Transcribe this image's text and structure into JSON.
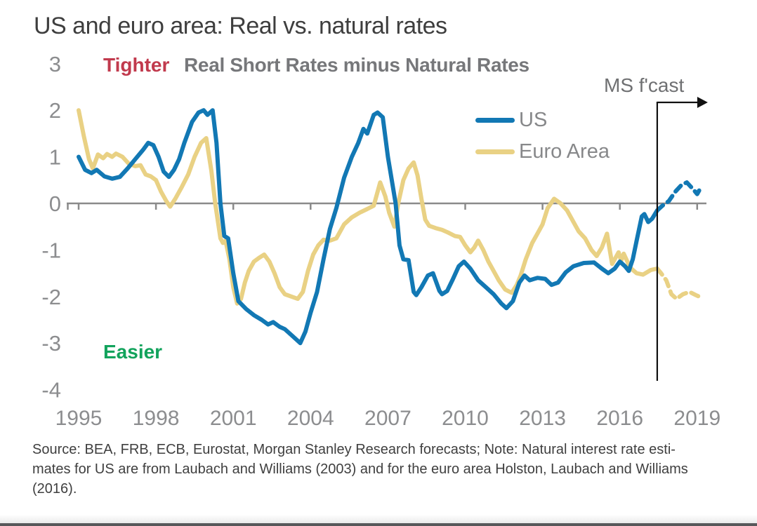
{
  "title": "US and euro area: Real vs. natural rates",
  "annotations": {
    "tighter": "Tighter",
    "easier": "Easier",
    "subtitle": "Real Short Rates minus Natural Rates",
    "forecast_label": "MS f'cast"
  },
  "legend": {
    "us": "US",
    "euro": "Euro Area"
  },
  "colors": {
    "us": "#1278b4",
    "euro": "#e9d184",
    "axis": "#8a8a8a",
    "tick_text": "#8c8d8f",
    "tighter": "#c13a4d",
    "easier": "#12a35c",
    "forecast_line": "#111111"
  },
  "source_note": {
    "lines": [
      "Source: BEA, FRB, ECB, Eurostat, Morgan Stanley Research forecasts; Note: Natural interest rate esti-",
      "mates for US are from Laubach and Williams (2003) and for the euro area Holston, Laubach and Williams",
      "(2016)."
    ]
  },
  "chart_data": {
    "type": "line",
    "title": "Real Short Rates minus Natural Rates",
    "xlabel": "",
    "ylabel": "",
    "x_ticks": [
      1995,
      1998,
      2001,
      2004,
      2007,
      2010,
      2013,
      2016,
      2019
    ],
    "y_ticks": [
      3,
      2,
      1,
      0,
      -1,
      -2,
      -3,
      -4
    ],
    "xlim": [
      1994.5,
      2019.5
    ],
    "ylim": [
      -4,
      3
    ],
    "grid": false,
    "legend_position": "upper-right-inside",
    "forecast_start": 2017.45,
    "series": [
      {
        "name": "Euro Area",
        "style": "solid",
        "color_key": "euro",
        "points": [
          [
            1995.0,
            2.0
          ],
          [
            1995.2,
            1.45
          ],
          [
            1995.4,
            0.95
          ],
          [
            1995.55,
            0.75
          ],
          [
            1995.75,
            1.05
          ],
          [
            1995.95,
            0.97
          ],
          [
            1996.1,
            1.06
          ],
          [
            1996.3,
            1.0
          ],
          [
            1996.45,
            1.07
          ],
          [
            1996.7,
            1.0
          ],
          [
            1996.95,
            0.85
          ],
          [
            1997.2,
            0.8
          ],
          [
            1997.4,
            0.82
          ],
          [
            1997.6,
            0.62
          ],
          [
            1997.8,
            0.58
          ],
          [
            1998.0,
            0.5
          ],
          [
            1998.2,
            0.25
          ],
          [
            1998.4,
            0.05
          ],
          [
            1998.55,
            -0.07
          ],
          [
            1998.75,
            0.1
          ],
          [
            1999.0,
            0.35
          ],
          [
            1999.25,
            0.62
          ],
          [
            1999.5,
            1.0
          ],
          [
            1999.75,
            1.3
          ],
          [
            1999.95,
            1.4
          ],
          [
            2000.15,
            0.7
          ],
          [
            2000.3,
            0.0
          ],
          [
            2000.5,
            -0.75
          ],
          [
            2000.6,
            -0.85
          ],
          [
            2000.7,
            -0.8
          ],
          [
            2000.85,
            -1.2
          ],
          [
            2001.0,
            -1.8
          ],
          [
            2001.15,
            -2.15
          ],
          [
            2001.3,
            -2.05
          ],
          [
            2001.45,
            -1.7
          ],
          [
            2001.6,
            -1.45
          ],
          [
            2001.8,
            -1.25
          ],
          [
            2002.0,
            -1.17
          ],
          [
            2002.2,
            -1.1
          ],
          [
            2002.4,
            -1.25
          ],
          [
            2002.6,
            -1.5
          ],
          [
            2002.8,
            -1.8
          ],
          [
            2003.0,
            -1.95
          ],
          [
            2003.25,
            -2.0
          ],
          [
            2003.5,
            -2.05
          ],
          [
            2003.7,
            -1.9
          ],
          [
            2003.9,
            -1.45
          ],
          [
            2004.1,
            -1.1
          ],
          [
            2004.3,
            -0.9
          ],
          [
            2004.5,
            -0.78
          ],
          [
            2004.75,
            -0.8
          ],
          [
            2005.0,
            -0.75
          ],
          [
            2005.3,
            -0.45
          ],
          [
            2005.6,
            -0.3
          ],
          [
            2005.9,
            -0.2
          ],
          [
            2006.2,
            -0.12
          ],
          [
            2006.45,
            -0.05
          ],
          [
            2006.7,
            0.45
          ],
          [
            2006.9,
            0.15
          ],
          [
            2007.05,
            -0.2
          ],
          [
            2007.25,
            -0.5
          ],
          [
            2007.4,
            0.0
          ],
          [
            2007.6,
            0.5
          ],
          [
            2007.8,
            0.75
          ],
          [
            2008.0,
            0.88
          ],
          [
            2008.15,
            0.6
          ],
          [
            2008.3,
            0.1
          ],
          [
            2008.45,
            -0.35
          ],
          [
            2008.6,
            -0.48
          ],
          [
            2008.85,
            -0.53
          ],
          [
            2009.1,
            -0.57
          ],
          [
            2009.35,
            -0.63
          ],
          [
            2009.6,
            -0.7
          ],
          [
            2009.8,
            -0.72
          ],
          [
            2010.0,
            -0.9
          ],
          [
            2010.2,
            -1.05
          ],
          [
            2010.35,
            -0.95
          ],
          [
            2010.5,
            -0.8
          ],
          [
            2010.7,
            -1.0
          ],
          [
            2010.9,
            -1.25
          ],
          [
            2011.1,
            -1.45
          ],
          [
            2011.3,
            -1.65
          ],
          [
            2011.55,
            -1.85
          ],
          [
            2011.8,
            -1.92
          ],
          [
            2012.0,
            -1.75
          ],
          [
            2012.15,
            -1.55
          ],
          [
            2012.35,
            -1.2
          ],
          [
            2012.6,
            -0.85
          ],
          [
            2012.8,
            -0.65
          ],
          [
            2013.0,
            -0.45
          ],
          [
            2013.2,
            -0.1
          ],
          [
            2013.45,
            0.1
          ],
          [
            2013.7,
            0.0
          ],
          [
            2013.95,
            -0.15
          ],
          [
            2014.15,
            -0.35
          ],
          [
            2014.4,
            -0.6
          ],
          [
            2014.65,
            -0.75
          ],
          [
            2014.9,
            -1.0
          ],
          [
            2015.1,
            -1.13
          ],
          [
            2015.3,
            -0.95
          ],
          [
            2015.5,
            -0.65
          ],
          [
            2015.7,
            -1.3
          ],
          [
            2015.95,
            -1.05
          ],
          [
            2016.05,
            -1.23
          ],
          [
            2016.15,
            -1.08
          ],
          [
            2016.4,
            -1.38
          ],
          [
            2016.65,
            -1.5
          ],
          [
            2016.9,
            -1.53
          ],
          [
            2017.2,
            -1.43
          ],
          [
            2017.45,
            -1.4
          ]
        ]
      },
      {
        "name": "Euro Area forecast",
        "style": "dashed",
        "color_key": "euro",
        "points": [
          [
            2017.45,
            -1.4
          ],
          [
            2017.6,
            -1.5
          ],
          [
            2017.8,
            -1.65
          ],
          [
            2018.0,
            -1.95
          ],
          [
            2018.2,
            -2.05
          ],
          [
            2018.45,
            -1.95
          ],
          [
            2018.7,
            -1.9
          ],
          [
            2018.95,
            -1.97
          ],
          [
            2019.15,
            -2.02
          ]
        ]
      },
      {
        "name": "US",
        "style": "solid",
        "color_key": "us",
        "points": [
          [
            1995.0,
            1.0
          ],
          [
            1995.25,
            0.72
          ],
          [
            1995.5,
            0.65
          ],
          [
            1995.7,
            0.72
          ],
          [
            1996.0,
            0.58
          ],
          [
            1996.3,
            0.53
          ],
          [
            1996.6,
            0.57
          ],
          [
            1996.9,
            0.75
          ],
          [
            1997.2,
            0.95
          ],
          [
            1997.5,
            1.15
          ],
          [
            1997.7,
            1.3
          ],
          [
            1997.9,
            1.25
          ],
          [
            1998.1,
            1.0
          ],
          [
            1998.3,
            0.68
          ],
          [
            1998.5,
            0.57
          ],
          [
            1998.7,
            0.72
          ],
          [
            1998.9,
            0.95
          ],
          [
            1999.1,
            1.3
          ],
          [
            1999.4,
            1.75
          ],
          [
            1999.65,
            1.95
          ],
          [
            1999.85,
            2.0
          ],
          [
            2000.0,
            1.9
          ],
          [
            2000.2,
            2.0
          ],
          [
            2000.35,
            1.3
          ],
          [
            2000.5,
            0.0
          ],
          [
            2000.65,
            -0.7
          ],
          [
            2000.8,
            -0.75
          ],
          [
            2001.0,
            -1.5
          ],
          [
            2001.2,
            -2.1
          ],
          [
            2001.5,
            -2.27
          ],
          [
            2001.8,
            -2.4
          ],
          [
            2002.1,
            -2.5
          ],
          [
            2002.35,
            -2.6
          ],
          [
            2002.55,
            -2.55
          ],
          [
            2002.8,
            -2.65
          ],
          [
            2003.0,
            -2.7
          ],
          [
            2003.3,
            -2.85
          ],
          [
            2003.6,
            -3.0
          ],
          [
            2003.8,
            -2.75
          ],
          [
            2004.0,
            -2.35
          ],
          [
            2004.25,
            -1.9
          ],
          [
            2004.5,
            -1.2
          ],
          [
            2004.75,
            -0.55
          ],
          [
            2005.0,
            -0.1
          ],
          [
            2005.3,
            0.55
          ],
          [
            2005.6,
            1.0
          ],
          [
            2005.85,
            1.3
          ],
          [
            2006.05,
            1.6
          ],
          [
            2006.2,
            1.5
          ],
          [
            2006.45,
            1.9
          ],
          [
            2006.6,
            1.95
          ],
          [
            2006.8,
            1.85
          ],
          [
            2007.0,
            1.0
          ],
          [
            2007.3,
            0.0
          ],
          [
            2007.45,
            -0.9
          ],
          [
            2007.6,
            -1.2
          ],
          [
            2007.8,
            -1.22
          ],
          [
            2008.0,
            -1.9
          ],
          [
            2008.1,
            -1.97
          ],
          [
            2008.3,
            -1.8
          ],
          [
            2008.55,
            -1.55
          ],
          [
            2008.75,
            -1.5
          ],
          [
            2009.0,
            -1.88
          ],
          [
            2009.1,
            -1.95
          ],
          [
            2009.3,
            -1.88
          ],
          [
            2009.5,
            -1.65
          ],
          [
            2009.75,
            -1.35
          ],
          [
            2009.95,
            -1.25
          ],
          [
            2010.2,
            -1.4
          ],
          [
            2010.5,
            -1.65
          ],
          [
            2010.8,
            -1.8
          ],
          [
            2011.1,
            -1.95
          ],
          [
            2011.4,
            -2.15
          ],
          [
            2011.6,
            -2.25
          ],
          [
            2011.85,
            -2.1
          ],
          [
            2012.1,
            -1.7
          ],
          [
            2012.3,
            -1.55
          ],
          [
            2012.5,
            -1.65
          ],
          [
            2012.8,
            -1.6
          ],
          [
            2013.1,
            -1.62
          ],
          [
            2013.35,
            -1.75
          ],
          [
            2013.6,
            -1.7
          ],
          [
            2013.9,
            -1.48
          ],
          [
            2014.2,
            -1.35
          ],
          [
            2014.6,
            -1.28
          ],
          [
            2015.0,
            -1.27
          ],
          [
            2015.3,
            -1.4
          ],
          [
            2015.55,
            -1.5
          ],
          [
            2015.8,
            -1.4
          ],
          [
            2016.0,
            -1.25
          ],
          [
            2016.2,
            -1.35
          ],
          [
            2016.35,
            -1.45
          ],
          [
            2016.5,
            -1.2
          ],
          [
            2016.65,
            -0.8
          ],
          [
            2016.85,
            -0.28
          ],
          [
            2016.95,
            -0.23
          ],
          [
            2017.1,
            -0.4
          ],
          [
            2017.25,
            -0.33
          ],
          [
            2017.45,
            -0.15
          ]
        ]
      },
      {
        "name": "US forecast",
        "style": "dashed",
        "color_key": "us",
        "points": [
          [
            2017.45,
            -0.15
          ],
          [
            2017.65,
            -0.05
          ],
          [
            2017.9,
            0.05
          ],
          [
            2018.15,
            0.25
          ],
          [
            2018.4,
            0.4
          ],
          [
            2018.6,
            0.45
          ],
          [
            2018.85,
            0.3
          ],
          [
            2019.0,
            0.2
          ],
          [
            2019.15,
            0.35
          ]
        ]
      }
    ]
  }
}
